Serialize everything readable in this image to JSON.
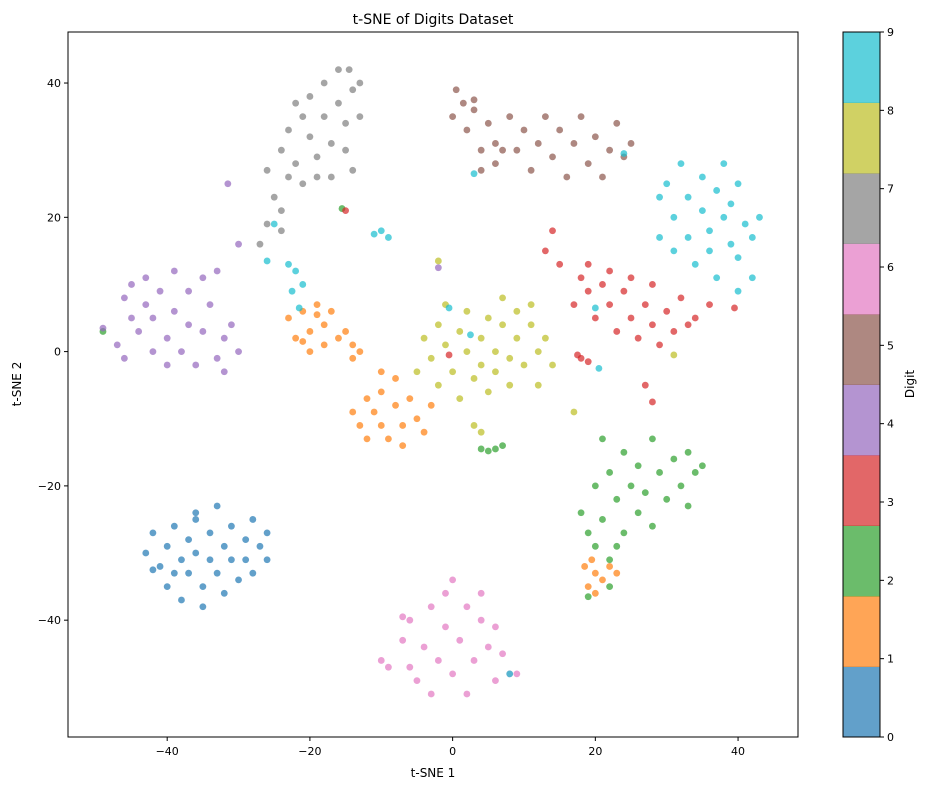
{
  "chart_data": {
    "type": "scatter",
    "title": "t-SNE of Digits Dataset",
    "xlabel": "t-SNE 1",
    "ylabel": "t-SNE 2",
    "xlim": [
      -53.9,
      48.4
    ],
    "ylim": [
      -57.4,
      47.6
    ],
    "xticks": [
      -40,
      -20,
      0,
      20,
      40
    ],
    "yticks": [
      -40,
      -20,
      0,
      20,
      40
    ],
    "grid": false,
    "colormap": "tab10",
    "alpha": 0.7,
    "colorbar": {
      "label": "Digit",
      "ticks": [
        0,
        1,
        2,
        3,
        4,
        5,
        6,
        7,
        8,
        9
      ],
      "colors": [
        "#1f77b4",
        "#ff7f0e",
        "#2ca02c",
        "#d62728",
        "#9467bd",
        "#8c564b",
        "#e377c2",
        "#7f7f7f",
        "#bcbd22",
        "#17becf"
      ]
    },
    "point_fields": [
      "tsne1",
      "tsne2",
      "digit"
    ],
    "points": [
      [
        -43,
        -30,
        0
      ],
      [
        -42,
        -27,
        0
      ],
      [
        -41,
        -32,
        0
      ],
      [
        -40,
        -29,
        0
      ],
      [
        -40,
        -35,
        0
      ],
      [
        -39,
        -26,
        0
      ],
      [
        -38,
        -31,
        0
      ],
      [
        -38,
        -37,
        0
      ],
      [
        -37,
        -28,
        0
      ],
      [
        -37,
        -33,
        0
      ],
      [
        -36,
        -25,
        0
      ],
      [
        -36,
        -30,
        0
      ],
      [
        -35,
        -35,
        0
      ],
      [
        -35,
        -38,
        0
      ],
      [
        -34,
        -27,
        0
      ],
      [
        -34,
        -31,
        0
      ],
      [
        -33,
        -23,
        0
      ],
      [
        -33,
        -33,
        0
      ],
      [
        -32,
        -29,
        0
      ],
      [
        -32,
        -36,
        0
      ],
      [
        -31,
        -26,
        0
      ],
      [
        -31,
        -31,
        0
      ],
      [
        -30,
        -34,
        0
      ],
      [
        -29,
        -28,
        0
      ],
      [
        -29,
        -31,
        0
      ],
      [
        -28,
        -25,
        0
      ],
      [
        -28,
        -33,
        0
      ],
      [
        -27,
        -29,
        0
      ],
      [
        -26,
        -27,
        0
      ],
      [
        -26,
        -31,
        0
      ],
      [
        -36,
        -24,
        0
      ],
      [
        -39,
        -33,
        0
      ],
      [
        -42,
        -32.5,
        0
      ],
      [
        -23,
        5,
        1
      ],
      [
        -22,
        2,
        1
      ],
      [
        -21,
        6,
        1
      ],
      [
        -20,
        3,
        1
      ],
      [
        -20,
        0,
        1
      ],
      [
        -19,
        7,
        1
      ],
      [
        -18,
        4,
        1
      ],
      [
        -18,
        1,
        1
      ],
      [
        -17,
        6,
        1
      ],
      [
        -16,
        2,
        1
      ],
      [
        -15,
        3,
        1
      ],
      [
        -14,
        1,
        1
      ],
      [
        -19,
        5.5,
        1
      ],
      [
        -21,
        1.5,
        1
      ],
      [
        -14,
        -9,
        1
      ],
      [
        -13,
        -11,
        1
      ],
      [
        -12,
        -7,
        1
      ],
      [
        -12,
        -13,
        1
      ],
      [
        -11,
        -9,
        1
      ],
      [
        -10,
        -11,
        1
      ],
      [
        -10,
        -6,
        1
      ],
      [
        -9,
        -13,
        1
      ],
      [
        -8,
        -8,
        1
      ],
      [
        -8,
        -4,
        1
      ],
      [
        -7,
        -11,
        1
      ],
      [
        -6,
        -7,
        1
      ],
      [
        -5,
        -10,
        1
      ],
      [
        -4,
        -12,
        1
      ],
      [
        -3,
        -8,
        1
      ],
      [
        -7,
        -14,
        1
      ],
      [
        -10,
        -3,
        1
      ],
      [
        18.5,
        -32,
        1
      ],
      [
        19,
        -35,
        1
      ],
      [
        20,
        -33,
        1
      ],
      [
        21,
        -34,
        1
      ],
      [
        22,
        -32,
        1
      ],
      [
        23,
        -33,
        1
      ],
      [
        20,
        -36,
        1
      ],
      [
        19.5,
        -31,
        1
      ],
      [
        -14,
        -1,
        1
      ],
      [
        -13,
        0,
        1
      ],
      [
        18,
        -24,
        2
      ],
      [
        19,
        -27,
        2
      ],
      [
        20,
        -20,
        2
      ],
      [
        20,
        -29,
        2
      ],
      [
        21,
        -13,
        2
      ],
      [
        21,
        -25,
        2
      ],
      [
        22,
        -18,
        2
      ],
      [
        22,
        -31,
        2
      ],
      [
        23,
        -22,
        2
      ],
      [
        24,
        -27,
        2
      ],
      [
        24,
        -15,
        2
      ],
      [
        25,
        -20,
        2
      ],
      [
        26,
        -24,
        2
      ],
      [
        26,
        -17,
        2
      ],
      [
        27,
        -21,
        2
      ],
      [
        28,
        -13,
        2
      ],
      [
        28,
        -26,
        2
      ],
      [
        29,
        -18,
        2
      ],
      [
        30,
        -22,
        2
      ],
      [
        31,
        -16,
        2
      ],
      [
        32,
        -20,
        2
      ],
      [
        33,
        -15,
        2
      ],
      [
        33,
        -23,
        2
      ],
      [
        34,
        -18,
        2
      ],
      [
        35,
        -17,
        2
      ],
      [
        22,
        -35,
        2
      ],
      [
        19,
        -36.5,
        2
      ],
      [
        23,
        -29,
        2
      ],
      [
        4,
        -14.5,
        2
      ],
      [
        5,
        -14.8,
        2
      ],
      [
        6,
        -14.5,
        2
      ],
      [
        7,
        -14,
        2
      ],
      [
        -49,
        3,
        2
      ],
      [
        -15.5,
        21.3,
        2
      ],
      [
        13,
        15,
        3
      ],
      [
        14,
        18,
        3
      ],
      [
        15,
        13,
        3
      ],
      [
        17,
        7,
        3
      ],
      [
        18,
        11,
        3
      ],
      [
        19,
        9,
        3
      ],
      [
        19,
        13,
        3
      ],
      [
        20,
        5,
        3
      ],
      [
        21,
        10,
        3
      ],
      [
        22,
        7,
        3
      ],
      [
        22,
        12,
        3
      ],
      [
        23,
        3,
        3
      ],
      [
        24,
        9,
        3
      ],
      [
        25,
        5,
        3
      ],
      [
        25,
        11,
        3
      ],
      [
        26,
        2,
        3
      ],
      [
        27,
        7,
        3
      ],
      [
        28,
        4,
        3
      ],
      [
        28,
        10,
        3
      ],
      [
        29,
        1,
        3
      ],
      [
        30,
        6,
        3
      ],
      [
        31,
        3,
        3
      ],
      [
        32,
        8,
        3
      ],
      [
        33,
        4,
        3
      ],
      [
        34,
        5,
        3
      ],
      [
        36,
        7,
        3
      ],
      [
        18,
        -1,
        3
      ],
      [
        19,
        -1.5,
        3
      ],
      [
        17.5,
        -0.5,
        3
      ],
      [
        27,
        -5,
        3
      ],
      [
        28,
        -7.5,
        3
      ],
      [
        -15,
        21,
        3
      ],
      [
        -0.5,
        -0.5,
        3
      ],
      [
        39.5,
        6.5,
        3
      ],
      [
        -49,
        3.5,
        4
      ],
      [
        -47,
        1,
        4
      ],
      [
        -46,
        -1,
        4
      ],
      [
        -46,
        8,
        4
      ],
      [
        -45,
        5,
        4
      ],
      [
        -45,
        10,
        4
      ],
      [
        -44,
        3,
        4
      ],
      [
        -43,
        7,
        4
      ],
      [
        -43,
        11,
        4
      ],
      [
        -42,
        0,
        4
      ],
      [
        -42,
        5,
        4
      ],
      [
        -41,
        9,
        4
      ],
      [
        -40,
        2,
        4
      ],
      [
        -40,
        -2,
        4
      ],
      [
        -39,
        6,
        4
      ],
      [
        -39,
        12,
        4
      ],
      [
        -38,
        0,
        4
      ],
      [
        -37,
        4,
        4
      ],
      [
        -37,
        9,
        4
      ],
      [
        -36,
        -2,
        4
      ],
      [
        -35,
        3,
        4
      ],
      [
        -35,
        11,
        4
      ],
      [
        -34,
        7,
        4
      ],
      [
        -33,
        -1,
        4
      ],
      [
        -33,
        12,
        4
      ],
      [
        -32,
        2,
        4
      ],
      [
        -32,
        -3,
        4
      ],
      [
        -31,
        4,
        4
      ],
      [
        -30,
        16,
        4
      ],
      [
        -30,
        0,
        4
      ],
      [
        -31.5,
        25,
        4
      ],
      [
        -2,
        12.5,
        4
      ],
      [
        0,
        35,
        5
      ],
      [
        0.5,
        39,
        5
      ],
      [
        1.5,
        37,
        5
      ],
      [
        2,
        33,
        5
      ],
      [
        3,
        36,
        5
      ],
      [
        4,
        30,
        5
      ],
      [
        4,
        27,
        5
      ],
      [
        5,
        34,
        5
      ],
      [
        6,
        31,
        5
      ],
      [
        6,
        28,
        5
      ],
      [
        8,
        35,
        5
      ],
      [
        9,
        30,
        5
      ],
      [
        10,
        33,
        5
      ],
      [
        11,
        27,
        5
      ],
      [
        12,
        31,
        5
      ],
      [
        13,
        35,
        5
      ],
      [
        14,
        29,
        5
      ],
      [
        15,
        33,
        5
      ],
      [
        16,
        26,
        5
      ],
      [
        17,
        31,
        5
      ],
      [
        18,
        35,
        5
      ],
      [
        19,
        28,
        5
      ],
      [
        20,
        32,
        5
      ],
      [
        21,
        26,
        5
      ],
      [
        22,
        30,
        5
      ],
      [
        23,
        34,
        5
      ],
      [
        24,
        29,
        5
      ],
      [
        25,
        31,
        5
      ],
      [
        3,
        37.5,
        5
      ],
      [
        7,
        30,
        5
      ],
      [
        -10,
        -46,
        6
      ],
      [
        -9,
        -47,
        6
      ],
      [
        -7,
        -43,
        6
      ],
      [
        -6,
        -47,
        6
      ],
      [
        -6,
        -40,
        6
      ],
      [
        -5,
        -49,
        6
      ],
      [
        -4,
        -44,
        6
      ],
      [
        -3,
        -38,
        6
      ],
      [
        -3,
        -51,
        6
      ],
      [
        -2,
        -46,
        6
      ],
      [
        -1,
        -41,
        6
      ],
      [
        -1,
        -36,
        6
      ],
      [
        0,
        -48,
        6
      ],
      [
        0,
        -34,
        6
      ],
      [
        1,
        -43,
        6
      ],
      [
        2,
        -38,
        6
      ],
      [
        2,
        -51,
        6
      ],
      [
        3,
        -46,
        6
      ],
      [
        4,
        -40,
        6
      ],
      [
        4,
        -36,
        6
      ],
      [
        5,
        -44,
        6
      ],
      [
        6,
        -49,
        6
      ],
      [
        6,
        -41,
        6
      ],
      [
        7,
        -45,
        6
      ],
      [
        8,
        -48,
        6
      ],
      [
        9,
        -48,
        6
      ],
      [
        -7,
        -39.5,
        6
      ],
      [
        -27,
        16,
        7
      ],
      [
        -26,
        19,
        7
      ],
      [
        -26,
        27,
        7
      ],
      [
        -25,
        23,
        7
      ],
      [
        -24,
        30,
        7
      ],
      [
        -24,
        21,
        7
      ],
      [
        -23,
        33,
        7
      ],
      [
        -23,
        26,
        7
      ],
      [
        -22,
        37,
        7
      ],
      [
        -22,
        28,
        7
      ],
      [
        -21,
        25,
        7
      ],
      [
        -21,
        35,
        7
      ],
      [
        -20,
        32,
        7
      ],
      [
        -20,
        38,
        7
      ],
      [
        -19,
        29,
        7
      ],
      [
        -19,
        26,
        7
      ],
      [
        -18,
        35,
        7
      ],
      [
        -18,
        40,
        7
      ],
      [
        -17,
        31,
        7
      ],
      [
        -17,
        26,
        7
      ],
      [
        -16,
        37,
        7
      ],
      [
        -16,
        42,
        7
      ],
      [
        -15,
        34,
        7
      ],
      [
        -15,
        30,
        7
      ],
      [
        -14,
        39,
        7
      ],
      [
        -14,
        27,
        7
      ],
      [
        -14.5,
        42,
        7
      ],
      [
        -13,
        35,
        7
      ],
      [
        -13,
        40,
        7
      ],
      [
        -24,
        18,
        7
      ],
      [
        -5,
        -3,
        8
      ],
      [
        -4,
        2,
        8
      ],
      [
        -3,
        -1,
        8
      ],
      [
        -2,
        4,
        8
      ],
      [
        -2,
        -5,
        8
      ],
      [
        -1,
        7,
        8
      ],
      [
        -1,
        1,
        8
      ],
      [
        0,
        -3,
        8
      ],
      [
        1,
        3,
        8
      ],
      [
        1,
        -7,
        8
      ],
      [
        2,
        0,
        8
      ],
      [
        2,
        6,
        8
      ],
      [
        3,
        -4,
        8
      ],
      [
        4,
        2,
        8
      ],
      [
        4,
        -2,
        8
      ],
      [
        5,
        5,
        8
      ],
      [
        5,
        -6,
        8
      ],
      [
        6,
        0,
        8
      ],
      [
        6,
        -3,
        8
      ],
      [
        7,
        4,
        8
      ],
      [
        7,
        8,
        8
      ],
      [
        8,
        -1,
        8
      ],
      [
        8,
        -5,
        8
      ],
      [
        9,
        6,
        8
      ],
      [
        9,
        2,
        8
      ],
      [
        10,
        -2,
        8
      ],
      [
        11,
        4,
        8
      ],
      [
        12,
        0,
        8
      ],
      [
        12,
        -5,
        8
      ],
      [
        13,
        2,
        8
      ],
      [
        14,
        -2,
        8
      ],
      [
        11,
        7,
        8
      ],
      [
        3,
        -11,
        8
      ],
      [
        4,
        -12,
        8
      ],
      [
        17,
        -9,
        8
      ],
      [
        31,
        -0.5,
        8
      ],
      [
        -2,
        13.5,
        8
      ],
      [
        29,
        23,
        9
      ],
      [
        29,
        17,
        9
      ],
      [
        30,
        25,
        9
      ],
      [
        31,
        20,
        9
      ],
      [
        31,
        15,
        9
      ],
      [
        32,
        28,
        9
      ],
      [
        33,
        23,
        9
      ],
      [
        33,
        17,
        9
      ],
      [
        34,
        13,
        9
      ],
      [
        35,
        26,
        9
      ],
      [
        35,
        21,
        9
      ],
      [
        36,
        18,
        9
      ],
      [
        36,
        15,
        9
      ],
      [
        37,
        24,
        9
      ],
      [
        37,
        11,
        9
      ],
      [
        38,
        20,
        9
      ],
      [
        38,
        28,
        9
      ],
      [
        39,
        16,
        9
      ],
      [
        39,
        22,
        9
      ],
      [
        40,
        14,
        9
      ],
      [
        40,
        25,
        9
      ],
      [
        41,
        19,
        9
      ],
      [
        42,
        17,
        9
      ],
      [
        42,
        11,
        9
      ],
      [
        43,
        20,
        9
      ],
      [
        40,
        9,
        9
      ],
      [
        -11,
        17.5,
        9
      ],
      [
        -10,
        18,
        9
      ],
      [
        -9,
        17,
        9
      ],
      [
        -22,
        12,
        9
      ],
      [
        -23,
        13,
        9
      ],
      [
        -21,
        10,
        9
      ],
      [
        -22.5,
        9,
        9
      ],
      [
        -21.5,
        6.5,
        9
      ],
      [
        -0.5,
        6.5,
        9
      ],
      [
        2.5,
        2.5,
        9
      ],
      [
        20,
        6.5,
        9
      ],
      [
        20.5,
        -2.5,
        9
      ],
      [
        24,
        29.5,
        9
      ],
      [
        3,
        26.5,
        9
      ],
      [
        -26,
        13.5,
        9
      ],
      [
        -25,
        19,
        9
      ],
      [
        8,
        -48,
        9
      ]
    ]
  }
}
